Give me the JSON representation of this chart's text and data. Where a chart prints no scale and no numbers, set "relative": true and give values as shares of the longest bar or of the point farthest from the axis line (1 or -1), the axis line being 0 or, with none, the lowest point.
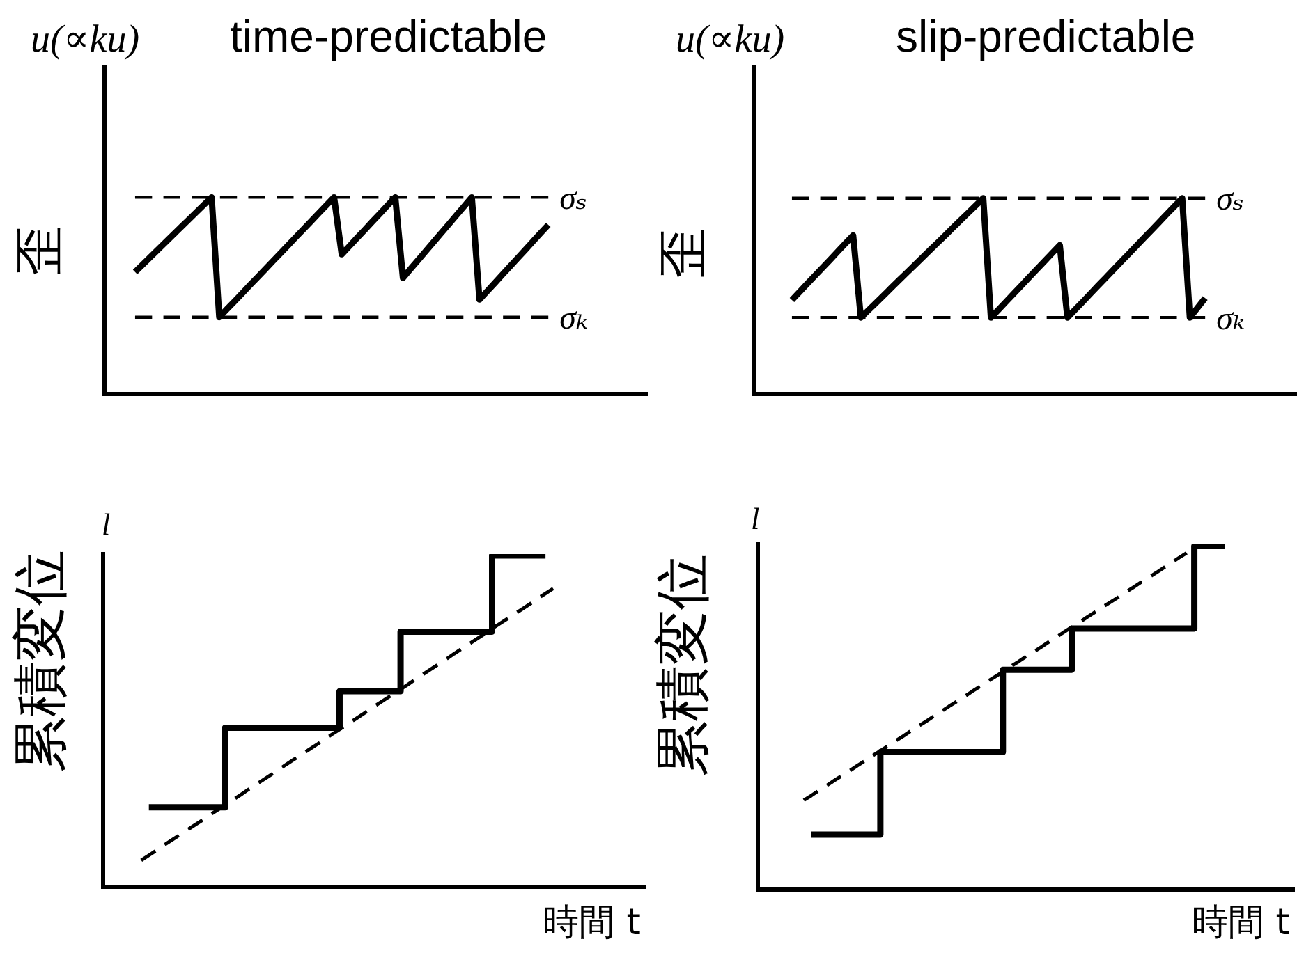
{
  "chart_data": [
    {
      "type": "line",
      "title": "time-predictable",
      "ylabel": "歪",
      "annotations": [
        "u(∝ku)"
      ],
      "relative": true,
      "marker": "none",
      "categories": [
        null,
        null,
        null,
        null,
        null,
        null,
        null,
        null,
        null,
        null,
        null,
        null,
        null,
        null,
        null,
        null,
        null,
        null,
        null,
        null,
        null,
        null,
        null,
        null,
        null,
        null,
        null,
        null,
        null,
        null,
        null,
        null,
        null,
        null,
        null,
        null,
        null,
        null,
        null,
        null,
        null,
        null,
        null,
        null,
        null,
        null,
        null,
        null,
        null,
        null,
        null,
        null,
        null,
        null,
        null,
        null,
        null,
        null,
        null,
        null,
        null,
        null,
        null,
        null,
        null,
        null,
        null,
        null,
        null,
        null,
        null,
        null
      ],
      "series": [
        {
          "color": "#000000",
          "values": [
            null,
            null,
            null,
            null,
            0.62,
            0.658,
            0.696,
            0.734,
            0.772,
            0.81,
            0.848,
            0.886,
            0.924,
            0.962,
            1,
            0.39,
            0.431,
            0.471,
            0.512,
            0.553,
            0.593,
            0.634,
            0.675,
            0.715,
            0.756,
            0.797,
            0.837,
            0.878,
            0.919,
            0.959,
            1,
            0.71,
            0.751,
            0.793,
            0.834,
            0.876,
            0.917,
            0.959,
            1,
            0.59,
            0.636,
            0.681,
            0.727,
            0.772,
            0.818,
            0.863,
            0.909,
            0.954,
            1,
            0.48,
            0.522,
            0.564,
            0.607,
            0.649,
            0.691,
            0.733,
            0.776,
            0.818,
            0.86,
            null,
            null,
            null,
            null,
            null,
            null,
            null,
            null,
            null,
            null,
            null,
            null,
            null
          ]
        }
      ],
      "ref_lines": [
        {
          "axis": "y",
          "value": 1,
          "label": "σₛ",
          "color": "#000000",
          "line_style": "dashed"
        },
        {
          "axis": "y",
          "value": 0.39,
          "label": "σₖ",
          "color": "#000000",
          "line_style": "dashed"
        }
      ]
    },
    {
      "type": "line",
      "title": "slip-predictable",
      "ylabel": "歪",
      "annotations": [
        "u(∝ku)"
      ],
      "relative": true,
      "marker": "none",
      "categories": [
        null,
        null,
        null,
        null,
        null,
        null,
        null,
        null,
        null,
        null,
        null,
        null,
        null,
        null,
        null,
        null,
        null,
        null,
        null,
        null,
        null,
        null,
        null,
        null,
        null,
        null,
        null,
        null,
        null,
        null,
        null,
        null,
        null,
        null,
        null,
        null,
        null,
        null,
        null,
        null,
        null,
        null,
        null,
        null,
        null,
        null,
        null,
        null,
        null,
        null,
        null,
        null,
        null,
        null,
        null,
        null,
        null,
        null,
        null,
        null,
        null,
        null,
        null,
        null,
        null,
        null,
        null,
        null,
        null,
        null,
        null,
        null
      ],
      "series": [
        {
          "color": "#000000",
          "values": [
            null,
            null,
            null,
            null,
            null,
            0.48,
            0.521,
            0.563,
            0.604,
            0.645,
            0.686,
            0.728,
            0.769,
            0.81,
            0.39,
            0.428,
            0.466,
            0.504,
            0.543,
            0.581,
            0.619,
            0.657,
            0.695,
            0.733,
            0.771,
            0.809,
            0.848,
            0.886,
            0.924,
            0.962,
            1,
            0.39,
            0.431,
            0.472,
            0.513,
            0.554,
            0.596,
            0.637,
            0.678,
            0.719,
            0.76,
            0.39,
            0.431,
            0.471,
            0.512,
            0.553,
            0.593,
            0.634,
            0.675,
            0.715,
            0.756,
            0.797,
            0.837,
            0.878,
            0.919,
            0.959,
            1,
            0.39,
            0.44,
            0.49,
            null,
            null,
            null,
            null,
            null,
            null,
            null,
            null,
            null,
            null,
            null,
            null
          ]
        }
      ],
      "ref_lines": [
        {
          "axis": "y",
          "value": 1,
          "label": "σₛ",
          "color": "#000000",
          "line_style": "dashed"
        },
        {
          "axis": "y",
          "value": 0.39,
          "label": "σₖ",
          "color": "#000000",
          "line_style": "dashed"
        }
      ]
    },
    {
      "type": "step",
      "ylabel": "累積変位",
      "xlabel": "時間 t",
      "annotations": [
        "l"
      ],
      "relative": true,
      "marker": "none",
      "categories": [
        null,
        null,
        null,
        null,
        null,
        null,
        null,
        null,
        null,
        null,
        null,
        null,
        null,
        null,
        null,
        null,
        null,
        null,
        null,
        null,
        null,
        null,
        null,
        null,
        null,
        null,
        null,
        null,
        null,
        null,
        null,
        null,
        null,
        null,
        null,
        null,
        null,
        null,
        null,
        null,
        null,
        null,
        null,
        null,
        null,
        null,
        null,
        null,
        null,
        null,
        null,
        null,
        null,
        null,
        null,
        null,
        null,
        null,
        null,
        null,
        null,
        null,
        null,
        null,
        null,
        null,
        null,
        null,
        null,
        null,
        null,
        null
      ],
      "series": [
        {
          "color": "#000000",
          "values": [
            null,
            null,
            null,
            null,
            null,
            null,
            0.24,
            0.24,
            0.24,
            0.24,
            0.24,
            0.24,
            0.24,
            0.24,
            0.24,
            0.24,
            0.48,
            0.48,
            0.48,
            0.48,
            0.48,
            0.48,
            0.48,
            0.48,
            0.48,
            0.48,
            0.48,
            0.48,
            0.48,
            0.48,
            0.48,
            0.59,
            0.59,
            0.59,
            0.59,
            0.59,
            0.59,
            0.59,
            0.59,
            0.77,
            0.77,
            0.77,
            0.77,
            0.77,
            0.77,
            0.77,
            0.77,
            0.77,
            0.77,
            0.77,
            0.77,
            1,
            1,
            1,
            1,
            1,
            1,
            1,
            1,
            null,
            null,
            null,
            null,
            null,
            null,
            null,
            null,
            null,
            null,
            null,
            null,
            null
          ]
        },
        {
          "type": "line",
          "color": "#000000",
          "line_style": "dashed",
          "values": [
            null,
            null,
            null,
            null,
            null,
            0.08,
            0.095,
            0.11,
            0.126,
            0.141,
            0.156,
            0.171,
            0.186,
            0.201,
            0.217,
            0.232,
            0.247,
            0.262,
            0.277,
            0.293,
            0.308,
            0.323,
            0.338,
            0.353,
            0.369,
            0.384,
            0.399,
            0.414,
            0.429,
            0.444,
            0.46,
            0.475,
            0.49,
            0.505,
            0.52,
            0.536,
            0.551,
            0.566,
            0.581,
            0.596,
            0.611,
            0.627,
            0.642,
            0.657,
            0.672,
            0.687,
            0.703,
            0.718,
            0.733,
            0.748,
            0.763,
            0.779,
            0.794,
            0.809,
            0.824,
            0.839,
            0.854,
            0.87,
            0.885,
            0.9,
            null,
            null,
            null,
            null,
            null,
            null,
            null,
            null,
            null,
            null,
            null,
            null
          ]
        }
      ]
    },
    {
      "type": "step",
      "ylabel": "累積変位",
      "xlabel": "時間 t",
      "annotations": [
        "l"
      ],
      "relative": true,
      "marker": "none",
      "categories": [
        null,
        null,
        null,
        null,
        null,
        null,
        null,
        null,
        null,
        null,
        null,
        null,
        null,
        null,
        null,
        null,
        null,
        null,
        null,
        null,
        null,
        null,
        null,
        null,
        null,
        null,
        null,
        null,
        null,
        null,
        null,
        null,
        null,
        null,
        null,
        null,
        null,
        null,
        null,
        null,
        null,
        null,
        null,
        null,
        null,
        null,
        null,
        null,
        null,
        null,
        null,
        null,
        null,
        null,
        null,
        null,
        null,
        null,
        null,
        null,
        null,
        null,
        null,
        null,
        null,
        null,
        null,
        null,
        null,
        null,
        null
      ],
      "series": [
        {
          "color": "#000000",
          "values": [
            null,
            null,
            null,
            null,
            null,
            null,
            null,
            0.16,
            0.16,
            0.16,
            0.16,
            0.16,
            0.16,
            0.16,
            0.16,
            0.16,
            0.4,
            0.4,
            0.4,
            0.4,
            0.4,
            0.4,
            0.4,
            0.4,
            0.4,
            0.4,
            0.4,
            0.4,
            0.4,
            0.4,
            0.4,
            0.4,
            0.64,
            0.64,
            0.64,
            0.64,
            0.64,
            0.64,
            0.64,
            0.64,
            0.64,
            0.76,
            0.76,
            0.76,
            0.76,
            0.76,
            0.76,
            0.76,
            0.76,
            0.76,
            0.76,
            0.76,
            0.76,
            0.76,
            0.76,
            0.76,
            0.76,
            1,
            1,
            1,
            1,
            1,
            null,
            null,
            null,
            null,
            null,
            null,
            null,
            null,
            null
          ]
        },
        {
          "type": "line",
          "color": "#000000",
          "line_style": "dashed",
          "values": [
            null,
            null,
            null,
            null,
            null,
            null,
            0.26,
            0.274,
            0.289,
            0.303,
            0.318,
            0.332,
            0.346,
            0.361,
            0.375,
            0.39,
            0.404,
            0.418,
            0.433,
            0.447,
            0.462,
            0.476,
            0.49,
            0.505,
            0.519,
            0.534,
            0.548,
            0.562,
            0.577,
            0.591,
            0.606,
            0.62,
            0.634,
            0.649,
            0.663,
            0.678,
            0.692,
            0.706,
            0.721,
            0.735,
            0.75,
            0.764,
            0.778,
            0.793,
            0.807,
            0.822,
            0.836,
            0.85,
            0.865,
            0.879,
            0.894,
            0.908,
            0.922,
            0.937,
            0.951,
            0.966,
            0.98,
            null,
            null,
            null,
            null,
            null,
            null,
            null,
            null,
            null,
            null,
            null,
            null,
            null,
            null
          ]
        }
      ]
    }
  ]
}
